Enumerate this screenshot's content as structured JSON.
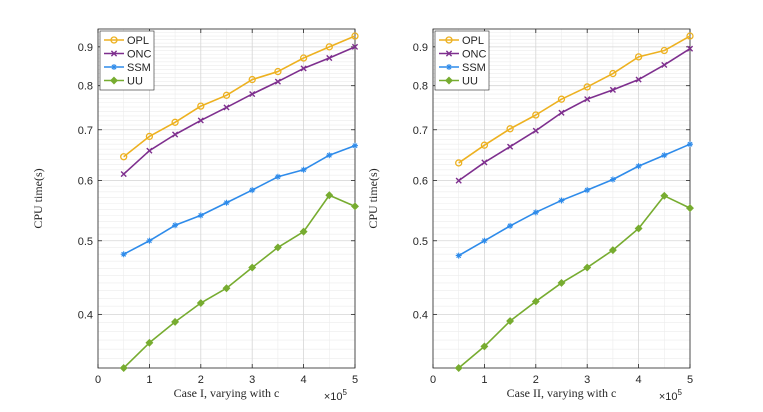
{
  "chart_data": [
    {
      "type": "line",
      "xlabel": "Case I, varying with c",
      "ylabel": "CPU time(s)",
      "x_multiplier_label": "×10",
      "x_multiplier_exp": "5",
      "xlim": [
        0,
        5
      ],
      "ylim": [
        0.34,
        0.95
      ],
      "y_scale": "log",
      "grid": true,
      "minor_grid": true,
      "legend_position": "top-left",
      "x_ticks": [
        0,
        1,
        2,
        3,
        4,
        5
      ],
      "x_tick_labels": [
        "0",
        "1",
        "2",
        "3",
        "4",
        "5"
      ],
      "y_ticks": [
        0.4,
        0.5,
        0.6,
        0.7,
        0.8,
        0.9
      ],
      "y_tick_labels": [
        "0.4",
        "0.5",
        "0.6",
        "0.7",
        "0.8",
        "0.9"
      ],
      "x": [
        0.5,
        1,
        1.5,
        2,
        2.5,
        3,
        3.5,
        4,
        4.5,
        5
      ],
      "series": [
        {
          "name": "OPL",
          "color": "#EDB120",
          "marker": "circle",
          "values": [
            0.645,
            0.686,
            0.716,
            0.752,
            0.777,
            0.815,
            0.835,
            0.87,
            0.9,
            0.93
          ]
        },
        {
          "name": "ONC",
          "color": "#7E2F8E",
          "marker": "x",
          "values": [
            0.612,
            0.657,
            0.69,
            0.72,
            0.749,
            0.78,
            0.81,
            0.843,
            0.87,
            0.9
          ]
        },
        {
          "name": "SSM",
          "color": "#2E8BEA",
          "marker": "star",
          "values": [
            0.48,
            0.5,
            0.524,
            0.54,
            0.561,
            0.583,
            0.607,
            0.62,
            0.648,
            0.667
          ]
        },
        {
          "name": "UU",
          "color": "#77AC30",
          "marker": "diamond",
          "values": [
            0.34,
            0.367,
            0.391,
            0.414,
            0.433,
            0.461,
            0.49,
            0.514,
            0.574,
            0.555
          ]
        }
      ]
    },
    {
      "type": "line",
      "xlabel": "Case II, varying with c",
      "ylabel": "CPU time(s)",
      "x_multiplier_label": "×10",
      "x_multiplier_exp": "5",
      "xlim": [
        0,
        5
      ],
      "ylim": [
        0.34,
        0.95
      ],
      "y_scale": "log",
      "grid": true,
      "minor_grid": true,
      "legend_position": "top-left",
      "x_ticks": [
        0,
        1,
        2,
        3,
        4,
        5
      ],
      "x_tick_labels": [
        "0",
        "1",
        "2",
        "3",
        "4",
        "5"
      ],
      "y_ticks": [
        0.4,
        0.5,
        0.6,
        0.7,
        0.8,
        0.9
      ],
      "y_tick_labels": [
        "0.4",
        "0.5",
        "0.6",
        "0.7",
        "0.8",
        "0.9"
      ],
      "x": [
        0.5,
        1,
        1.5,
        2,
        2.5,
        3,
        3.5,
        4,
        4.5,
        5
      ],
      "series": [
        {
          "name": "OPL",
          "color": "#EDB120",
          "marker": "circle",
          "values": [
            0.633,
            0.668,
            0.702,
            0.732,
            0.768,
            0.797,
            0.83,
            0.873,
            0.89,
            0.93
          ]
        },
        {
          "name": "ONC",
          "color": "#7E2F8E",
          "marker": "x",
          "values": [
            0.6,
            0.634,
            0.665,
            0.698,
            0.737,
            0.768,
            0.79,
            0.815,
            0.852,
            0.895
          ]
        },
        {
          "name": "SSM",
          "color": "#2E8BEA",
          "marker": "star",
          "values": [
            0.478,
            0.5,
            0.523,
            0.545,
            0.565,
            0.583,
            0.602,
            0.627,
            0.648,
            0.67
          ]
        },
        {
          "name": "UU",
          "color": "#77AC30",
          "marker": "diamond",
          "values": [
            0.34,
            0.363,
            0.392,
            0.416,
            0.44,
            0.461,
            0.486,
            0.519,
            0.573,
            0.552
          ]
        }
      ]
    }
  ]
}
